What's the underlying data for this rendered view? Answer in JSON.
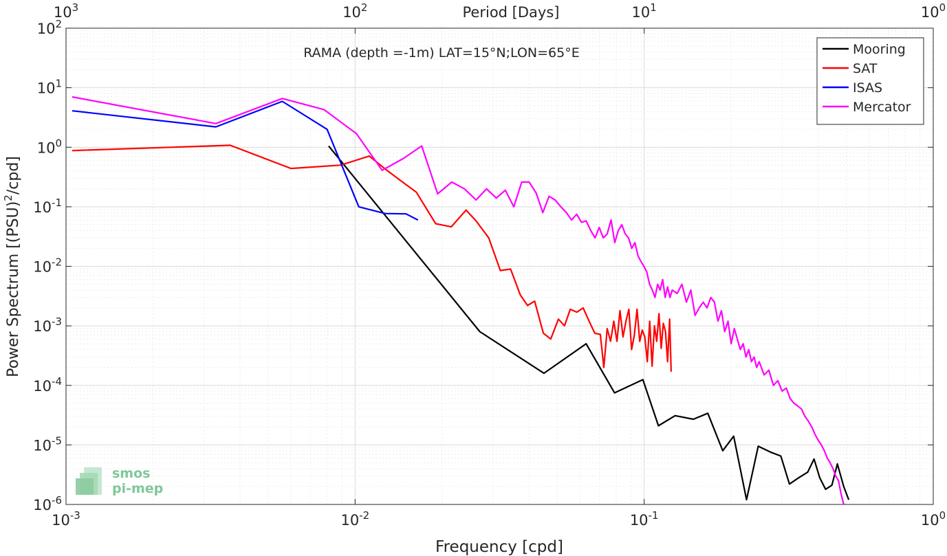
{
  "chart_data": {
    "type": "line",
    "title": "RAMA (depth =-1m) LAT=15°N;LON=65°E",
    "xlabel": "Frequency [cpd]",
    "ylabel": "Power Spectrum [(PSU)",
    "ylabel_sup": "2",
    "ylabel_tail": "/cpd]",
    "top_xlabel": "Period [Days]",
    "x_scale": "log",
    "y_scale": "log",
    "xlim": [
      0.001,
      1
    ],
    "ylim": [
      1e-06,
      100
    ],
    "grid": true,
    "legend_position": "top-right",
    "x_ticks": [
      {
        "label": "10",
        "exp": "-3"
      },
      {
        "label": "10",
        "exp": "-2"
      },
      {
        "label": "10",
        "exp": "-1"
      },
      {
        "label": "10",
        "exp": "0"
      }
    ],
    "top_ticks": [
      {
        "label": "10",
        "exp": "3"
      },
      {
        "label": "10",
        "exp": "2"
      },
      {
        "label": "10",
        "exp": "1"
      },
      {
        "label": "10",
        "exp": "0"
      }
    ],
    "y_ticks": [
      {
        "label": "10",
        "exp": "-6"
      },
      {
        "label": "10",
        "exp": "-5"
      },
      {
        "label": "10",
        "exp": "-4"
      },
      {
        "label": "10",
        "exp": "-3"
      },
      {
        "label": "10",
        "exp": "-2"
      },
      {
        "label": "10",
        "exp": "-1"
      },
      {
        "label": "10",
        "exp": "0"
      },
      {
        "label": "10",
        "exp": "1"
      },
      {
        "label": "10",
        "exp": "2"
      }
    ],
    "series": [
      {
        "name": "Mooring",
        "color": "#000000",
        "points": [
          [
            0.0081,
            1.05
          ],
          [
            0.027,
            0.0008
          ],
          [
            0.045,
            0.00016
          ],
          [
            0.063,
            0.0005
          ],
          [
            0.079,
            7.5e-05
          ],
          [
            0.099,
            0.000125
          ],
          [
            0.112,
            2.1e-05
          ],
          [
            0.128,
            3.1e-05
          ],
          [
            0.148,
            2.7e-05
          ],
          [
            0.166,
            3.4e-05
          ],
          [
            0.187,
            8e-06
          ],
          [
            0.204,
            1.4e-05
          ],
          [
            0.226,
            1.2e-06
          ],
          [
            0.248,
            9.5e-06
          ],
          [
            0.275,
            7.5e-06
          ],
          [
            0.297,
            6.5e-06
          ],
          [
            0.318,
            2.2e-06
          ],
          [
            0.342,
            2.8e-06
          ],
          [
            0.368,
            3.5e-06
          ],
          [
            0.387,
            5.8e-06
          ],
          [
            0.405,
            2.8e-06
          ],
          [
            0.424,
            1.8e-06
          ],
          [
            0.446,
            2.1e-06
          ],
          [
            0.466,
            4.8e-06
          ],
          [
            0.49,
            2e-06
          ],
          [
            0.51,
            1.2e-06
          ]
        ]
      },
      {
        "name": "SAT",
        "color": "#ff0000",
        "points": [
          [
            0.00105,
            0.88
          ],
          [
            0.0037,
            1.08
          ],
          [
            0.006,
            0.44
          ],
          [
            0.0089,
            0.5
          ],
          [
            0.0112,
            0.71
          ],
          [
            0.0128,
            0.42
          ],
          [
            0.0143,
            0.28
          ],
          [
            0.0163,
            0.175
          ],
          [
            0.019,
            0.052
          ],
          [
            0.0215,
            0.046
          ],
          [
            0.0242,
            0.088
          ],
          [
            0.0262,
            0.058
          ],
          [
            0.029,
            0.03
          ],
          [
            0.0318,
            0.0085
          ],
          [
            0.0345,
            0.009
          ],
          [
            0.0373,
            0.0033
          ],
          [
            0.0395,
            0.0022
          ],
          [
            0.0418,
            0.0026
          ],
          [
            0.0448,
            0.00075
          ],
          [
            0.0475,
            0.0006
          ],
          [
            0.0505,
            0.0013
          ],
          [
            0.053,
            0.001
          ],
          [
            0.0555,
            0.0019
          ],
          [
            0.0585,
            0.0017
          ],
          [
            0.0615,
            0.002
          ],
          [
            0.0645,
            0.0012
          ],
          [
            0.0675,
            0.00075
          ],
          [
            0.0705,
            0.00072
          ],
          [
            0.0725,
            0.0002
          ],
          [
            0.0745,
            0.0009
          ],
          [
            0.0765,
            0.00055
          ],
          [
            0.0785,
            0.0012
          ],
          [
            0.0805,
            0.00055
          ],
          [
            0.0825,
            0.0018
          ],
          [
            0.0845,
            0.00065
          ],
          [
            0.0865,
            0.0012
          ],
          [
            0.0885,
            0.0019
          ],
          [
            0.0905,
            0.0004
          ],
          [
            0.0925,
            0.0007
          ],
          [
            0.0945,
            0.0019
          ],
          [
            0.0965,
            0.00055
          ],
          [
            0.0985,
            0.00085
          ],
          [
            0.1005,
            0.00065
          ],
          [
            0.1025,
            0.00025
          ],
          [
            0.1045,
            0.0012
          ],
          [
            0.1065,
            0.00021
          ],
          [
            0.1085,
            0.001
          ],
          [
            0.1105,
            0.00055
          ],
          [
            0.1125,
            0.0016
          ],
          [
            0.1145,
            0.00042
          ],
          [
            0.1165,
            0.0011
          ],
          [
            0.1185,
            0.0008
          ],
          [
            0.1205,
            0.00025
          ],
          [
            0.1225,
            0.0013
          ],
          [
            0.124,
            0.00017
          ]
        ]
      },
      {
        "name": "ISAS",
        "color": "#0000ff",
        "points": [
          [
            0.00105,
            4.1
          ],
          [
            0.0033,
            2.2
          ],
          [
            0.0056,
            5.9
          ],
          [
            0.008,
            2.0
          ],
          [
            0.0103,
            0.1
          ],
          [
            0.0127,
            0.077
          ],
          [
            0.015,
            0.076
          ],
          [
            0.0165,
            0.06
          ]
        ]
      },
      {
        "name": "Mercator",
        "color": "#ff00ff",
        "points": [
          [
            0.00105,
            7.0
          ],
          [
            0.0033,
            2.5
          ],
          [
            0.0056,
            6.6
          ],
          [
            0.0078,
            4.3
          ],
          [
            0.0101,
            1.7
          ],
          [
            0.0124,
            0.41
          ],
          [
            0.0147,
            0.65
          ],
          [
            0.017,
            1.05
          ],
          [
            0.0193,
            0.165
          ],
          [
            0.0216,
            0.26
          ],
          [
            0.0239,
            0.2
          ],
          [
            0.0262,
            0.13
          ],
          [
            0.0285,
            0.2
          ],
          [
            0.0308,
            0.14
          ],
          [
            0.0331,
            0.19
          ],
          [
            0.0354,
            0.1
          ],
          [
            0.0377,
            0.26
          ],
          [
            0.04,
            0.26
          ],
          [
            0.0423,
            0.17
          ],
          [
            0.0446,
            0.08
          ],
          [
            0.0469,
            0.15
          ],
          [
            0.0492,
            0.13
          ],
          [
            0.0515,
            0.1
          ],
          [
            0.0538,
            0.08
          ],
          [
            0.0561,
            0.06
          ],
          [
            0.0584,
            0.075
          ],
          [
            0.0607,
            0.055
          ],
          [
            0.063,
            0.058
          ],
          [
            0.0653,
            0.04
          ],
          [
            0.0676,
            0.03
          ],
          [
            0.0699,
            0.045
          ],
          [
            0.0722,
            0.03
          ],
          [
            0.0745,
            0.035
          ],
          [
            0.0768,
            0.06
          ],
          [
            0.0791,
            0.025
          ],
          [
            0.0814,
            0.04
          ],
          [
            0.0837,
            0.05
          ],
          [
            0.086,
            0.035
          ],
          [
            0.0883,
            0.03
          ],
          [
            0.0906,
            0.02
          ],
          [
            0.0929,
            0.025
          ],
          [
            0.0952,
            0.015
          ],
          [
            0.0975,
            0.012
          ],
          [
            0.0998,
            0.01
          ],
          [
            0.1021,
            0.008
          ],
          [
            0.1044,
            0.005
          ],
          [
            0.1067,
            0.004
          ],
          [
            0.109,
            0.003
          ],
          [
            0.1113,
            0.005
          ],
          [
            0.1136,
            0.004
          ],
          [
            0.1159,
            0.006
          ],
          [
            0.1182,
            0.003
          ],
          [
            0.1205,
            0.0045
          ],
          [
            0.1228,
            0.003
          ],
          [
            0.1251,
            0.004
          ],
          [
            0.13,
            0.0035
          ],
          [
            0.135,
            0.005
          ],
          [
            0.14,
            0.0025
          ],
          [
            0.145,
            0.004
          ],
          [
            0.15,
            0.0015
          ],
          [
            0.155,
            0.002
          ],
          [
            0.16,
            0.0025
          ],
          [
            0.165,
            0.002
          ],
          [
            0.17,
            0.003
          ],
          [
            0.175,
            0.0025
          ],
          [
            0.18,
            0.0012
          ],
          [
            0.185,
            0.0018
          ],
          [
            0.19,
            0.0008
          ],
          [
            0.195,
            0.0012
          ],
          [
            0.2,
            0.0005
          ],
          [
            0.205,
            0.0009
          ],
          [
            0.21,
            0.0006
          ],
          [
            0.215,
            0.0004
          ],
          [
            0.22,
            0.0005
          ],
          [
            0.225,
            0.0003
          ],
          [
            0.23,
            0.0004
          ],
          [
            0.235,
            0.00025
          ],
          [
            0.24,
            0.0003
          ],
          [
            0.245,
            0.0002
          ],
          [
            0.25,
            0.00025
          ],
          [
            0.26,
            0.00015
          ],
          [
            0.27,
            0.00018
          ],
          [
            0.28,
            0.0001
          ],
          [
            0.29,
            0.00012
          ],
          [
            0.3,
            8e-05
          ],
          [
            0.31,
            9e-05
          ],
          [
            0.32,
            6e-05
          ],
          [
            0.33,
            5e-05
          ],
          [
            0.34,
            4.5e-05
          ],
          [
            0.35,
            4e-05
          ],
          [
            0.36,
            3e-05
          ],
          [
            0.37,
            2.5e-05
          ],
          [
            0.38,
            2e-05
          ],
          [
            0.39,
            1.5e-05
          ],
          [
            0.4,
            1.2e-05
          ],
          [
            0.41,
            1e-05
          ],
          [
            0.42,
            8e-06
          ],
          [
            0.43,
            6e-06
          ],
          [
            0.44,
            5e-06
          ],
          [
            0.45,
            4e-06
          ],
          [
            0.46,
            3e-06
          ],
          [
            0.47,
            2.5e-06
          ],
          [
            0.48,
            1.5e-06
          ],
          [
            0.49,
            1e-06
          ]
        ]
      }
    ]
  },
  "watermark": {
    "line1": "smos",
    "line2": "pi-mep",
    "color": "#7fc79a"
  }
}
